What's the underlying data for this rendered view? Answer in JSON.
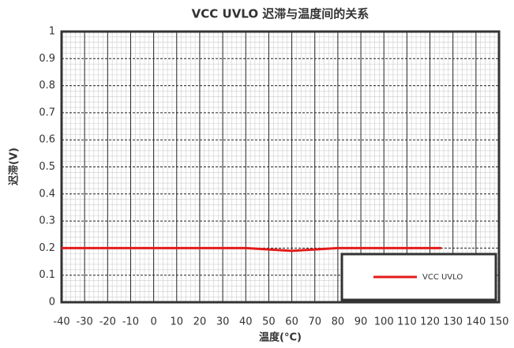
{
  "chart_data": {
    "type": "line",
    "title": "VCC UVLO 迟滞与温度间的关系",
    "xlabel": "温度(°C)",
    "ylabel": "迟滞(V)",
    "x": [
      -40,
      -30,
      -20,
      -10,
      0,
      10,
      20,
      30,
      40,
      50,
      60,
      70,
      80,
      90,
      100,
      110,
      125
    ],
    "series": [
      {
        "name": "VCC UVLO",
        "color": "#e31b1b",
        "values": [
          0.2,
          0.2,
          0.2,
          0.2,
          0.2,
          0.2,
          0.2,
          0.2,
          0.2,
          0.195,
          0.19,
          0.195,
          0.2,
          0.2,
          0.2,
          0.2,
          0.2
        ]
      }
    ],
    "xlim": [
      -40,
      150
    ],
    "xticks": [
      -40,
      -30,
      -20,
      -10,
      0,
      10,
      20,
      30,
      40,
      50,
      60,
      70,
      80,
      90,
      100,
      110,
      120,
      130,
      140,
      150
    ],
    "ylim": [
      0,
      1
    ],
    "yticks": [
      0,
      0.1,
      0.2,
      0.3,
      0.4,
      0.5,
      0.6,
      0.7,
      0.8,
      0.9,
      1
    ],
    "grid": true,
    "legend": "lower right"
  }
}
